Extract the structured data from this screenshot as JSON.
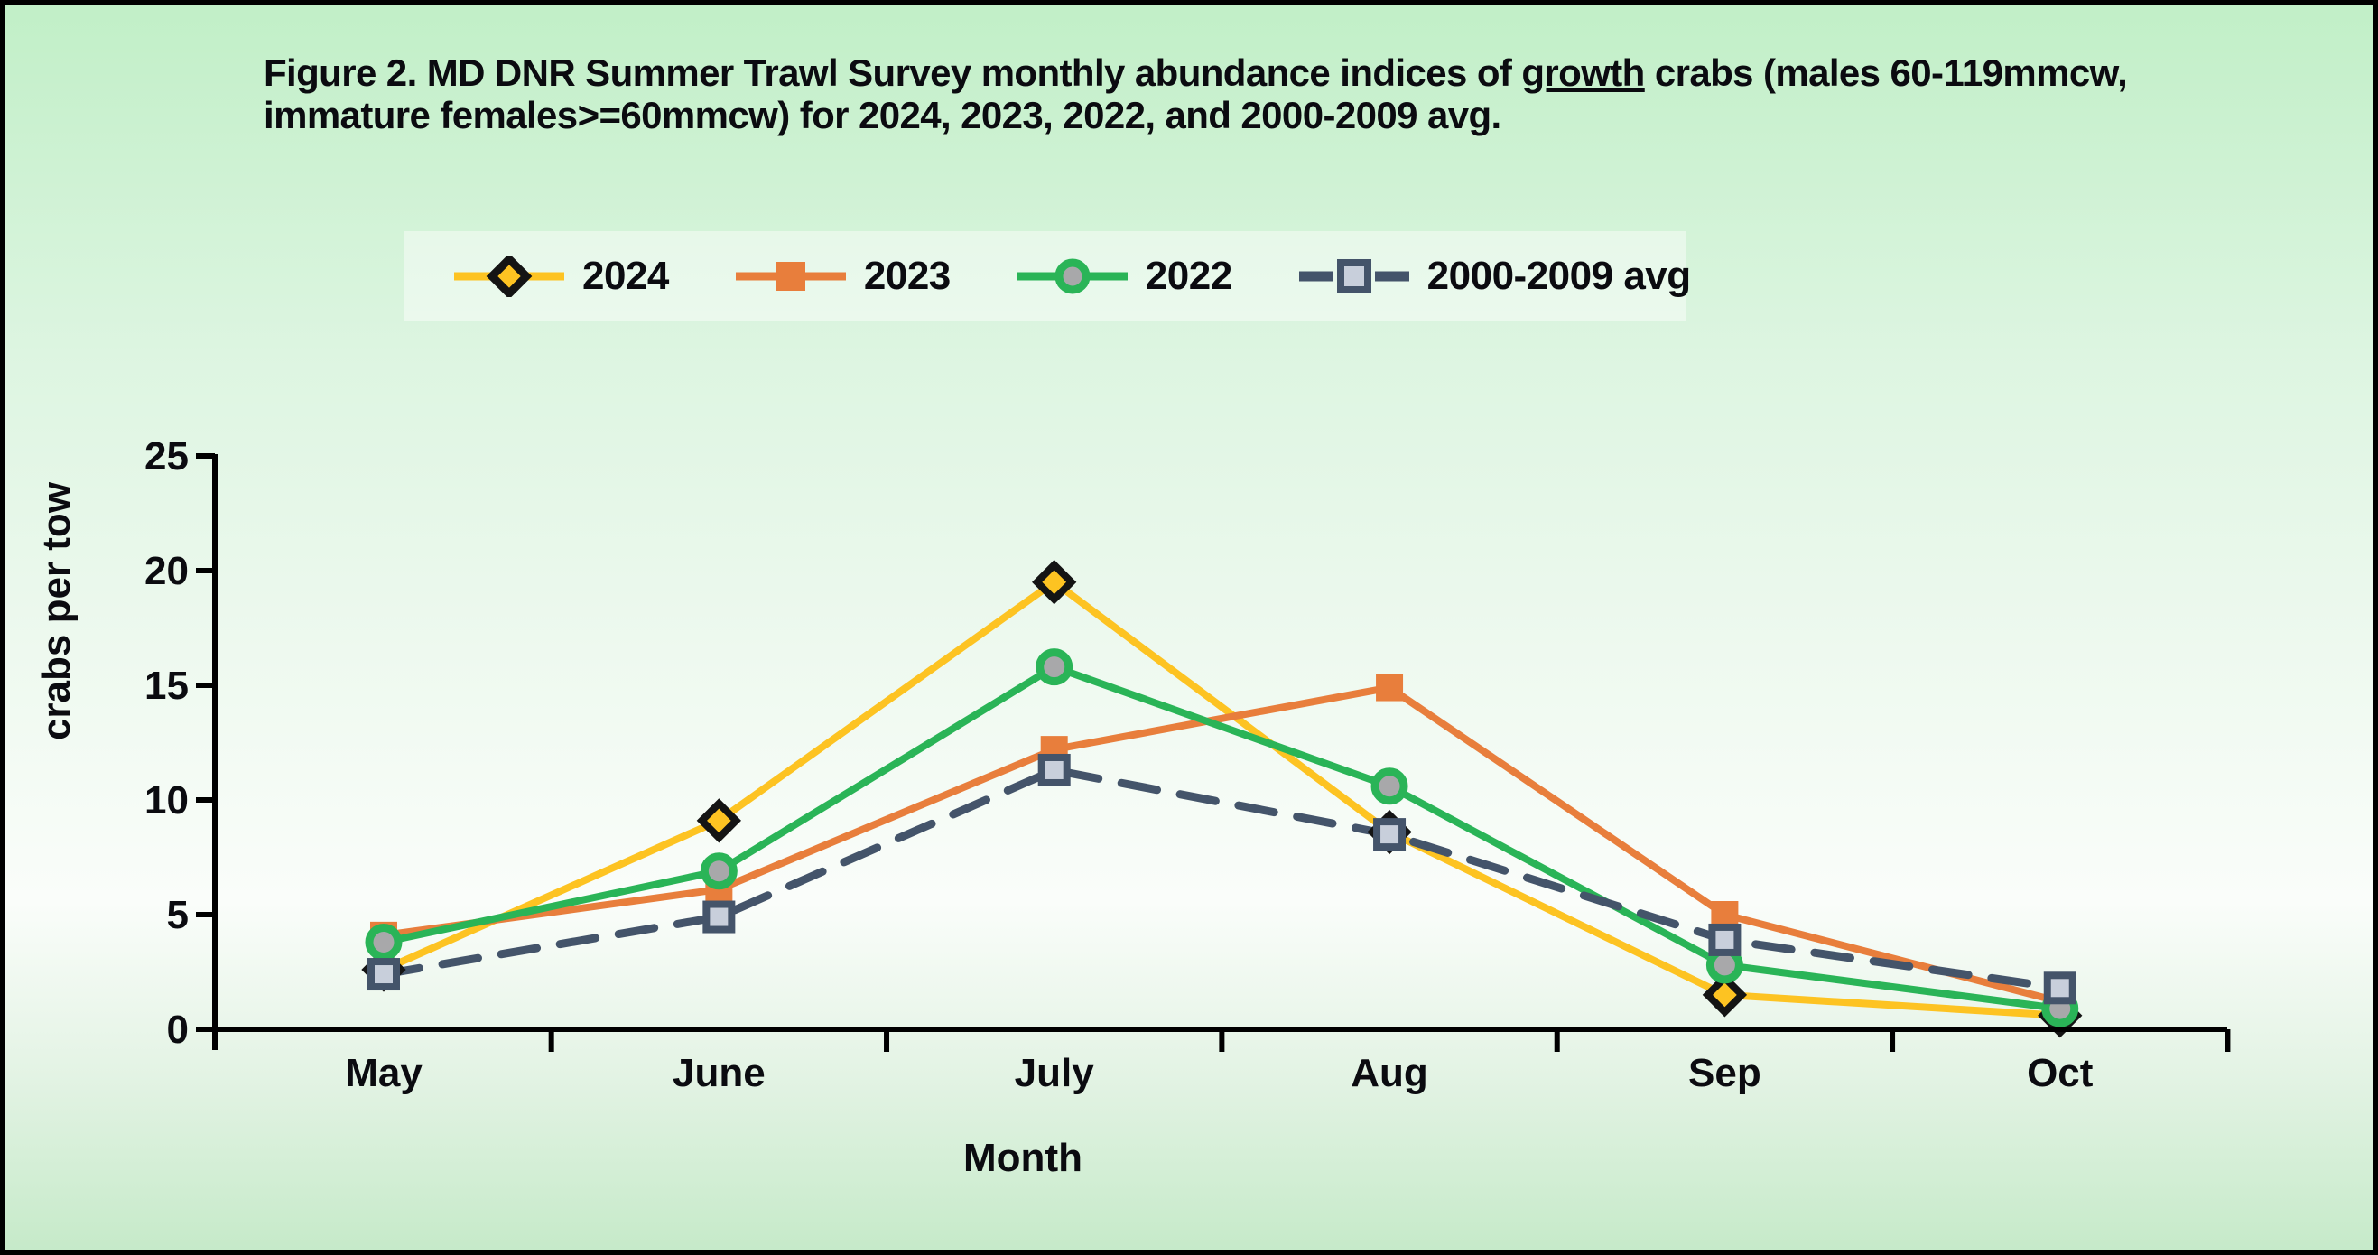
{
  "title": {
    "pre": "Figure 2.  MD DNR  Summer Trawl Survey monthly abundance indices of ",
    "underlined": "growth",
    "post": " crabs (males 60-119mmcw, immature females>=60mmcw) for 2024, 2023, 2022, and 2000-2009 avg."
  },
  "chart_data": {
    "type": "line",
    "title": "Figure 2. MD DNR Summer Trawl Survey monthly abundance indices of growth crabs (males 60-119mmcw, immature females>=60mmcw) for 2024, 2023, 2022, and 2000-2009 avg.",
    "categories": [
      "May",
      "June",
      "July",
      "Aug",
      "Sep",
      "Oct"
    ],
    "xlabel": "Month",
    "ylabel": "crabs per tow",
    "ylim": [
      0,
      25
    ],
    "yticks": [
      0,
      5,
      10,
      15,
      20,
      25
    ],
    "grid": false,
    "legend_position": "top",
    "axis_color": "#000000",
    "text_color": "#0b0b10",
    "series": [
      {
        "name": "2024",
        "color": "#fdc322",
        "dash": false,
        "marker": {
          "shape": "diamond",
          "fill": "#fdc322",
          "stroke": "#141414"
        },
        "values": [
          2.6,
          9.1,
          19.5,
          8.6,
          1.5,
          0.6
        ]
      },
      {
        "name": "2023",
        "color": "#e87e3c",
        "dash": false,
        "marker": {
          "shape": "square",
          "fill": "#e87e3c",
          "stroke": "#e87e3c"
        },
        "values": [
          4.1,
          6.1,
          12.2,
          14.9,
          5.0,
          1.2
        ]
      },
      {
        "name": "2022",
        "color": "#2ab457",
        "dash": false,
        "marker": {
          "shape": "circle",
          "fill": "#a8a8aa",
          "stroke": "#2ab457"
        },
        "values": [
          3.8,
          6.9,
          15.8,
          10.6,
          2.8,
          0.9
        ]
      },
      {
        "name": "2000-2009 avg",
        "color": "#44546a",
        "dash": true,
        "marker": {
          "shape": "square",
          "fill": "#c8cfdb",
          "stroke": "#44546a"
        },
        "values": [
          2.4,
          4.9,
          11.3,
          8.5,
          3.9,
          1.8
        ]
      }
    ]
  }
}
